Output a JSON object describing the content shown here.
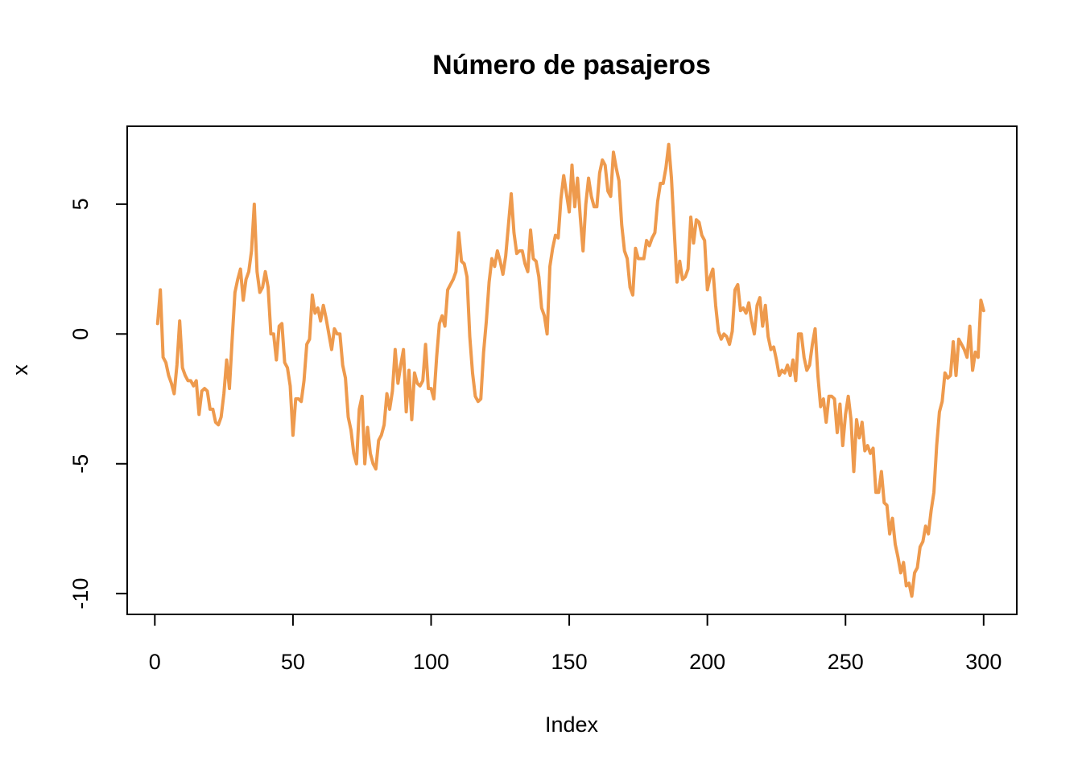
{
  "chart_data": {
    "type": "line",
    "title": "Número de pasajeros",
    "xlabel": "Index",
    "ylabel": "x",
    "xlim": [
      -10,
      312
    ],
    "ylim": [
      -10.8,
      8.0
    ],
    "x_ticks": [
      0,
      50,
      100,
      150,
      200,
      250,
      300
    ],
    "y_ticks": [
      -10,
      -5,
      0,
      5
    ],
    "grid": false,
    "legend": "none",
    "color": "#EE9A4D",
    "series": [
      {
        "x_start": 1,
        "x_step": 1,
        "values": [
          0.4,
          1.7,
          -0.9,
          -1.1,
          -1.6,
          -1.9,
          -2.3,
          -1.2,
          0.5,
          -1.3,
          -1.6,
          -1.8,
          -1.8,
          -2.0,
          -1.8,
          -3.1,
          -2.2,
          -2.1,
          -2.2,
          -2.9,
          -2.9,
          -3.4,
          -3.5,
          -3.2,
          -2.3,
          -1.0,
          -2.1,
          -0.2,
          1.6,
          2.1,
          2.5,
          1.3,
          2.1,
          2.4,
          3.2,
          5.0,
          2.4,
          1.6,
          1.8,
          2.4,
          1.8,
          0.0,
          0.0,
          -1.0,
          0.3,
          0.4,
          -1.1,
          -1.3,
          -2.0,
          -3.9,
          -2.5,
          -2.5,
          -2.6,
          -1.8,
          -0.4,
          -0.2,
          1.5,
          0.8,
          1.0,
          0.5,
          1.1,
          0.6,
          0.0,
          -0.6,
          0.2,
          0.0,
          0.0,
          -1.2,
          -1.7,
          -3.2,
          -3.7,
          -4.6,
          -5.0,
          -2.9,
          -2.4,
          -5.0,
          -3.6,
          -4.6,
          -5.0,
          -5.2,
          -4.1,
          -3.9,
          -3.5,
          -2.3,
          -2.9,
          -2.2,
          -0.6,
          -1.9,
          -1.2,
          -0.6,
          -3.0,
          -1.4,
          -3.3,
          -1.5,
          -1.9,
          -2.0,
          -1.8,
          -0.4,
          -2.1,
          -2.1,
          -2.5,
          -0.9,
          0.4,
          0.7,
          0.3,
          1.7,
          1.9,
          2.1,
          2.4,
          3.9,
          2.8,
          2.7,
          2.2,
          -0.1,
          -1.5,
          -2.4,
          -2.6,
          -2.5,
          -0.7,
          0.5,
          2.0,
          2.9,
          2.6,
          3.2,
          2.8,
          2.3,
          3.0,
          4.2,
          5.4,
          3.9,
          3.1,
          3.2,
          3.2,
          2.7,
          2.4,
          4.0,
          2.9,
          2.8,
          2.2,
          1.0,
          0.7,
          0.0,
          2.6,
          3.3,
          3.8,
          3.7,
          5.2,
          6.1,
          5.4,
          4.7,
          6.5,
          4.9,
          6.0,
          4.5,
          3.2,
          5.0,
          6.0,
          5.3,
          4.9,
          4.9,
          6.2,
          6.7,
          6.5,
          5.5,
          5.3,
          7.0,
          6.4,
          5.9,
          4.2,
          3.2,
          2.9,
          1.8,
          1.5,
          3.3,
          2.9,
          2.9,
          2.9,
          3.6,
          3.4,
          3.7,
          3.9,
          5.1,
          5.8,
          5.8,
          6.4,
          7.3,
          6.0,
          4.0,
          2.0,
          2.8,
          2.1,
          2.2,
          2.5,
          4.5,
          3.5,
          4.4,
          4.3,
          3.8,
          3.6,
          1.7,
          2.2,
          2.5,
          1.1,
          0.1,
          -0.2,
          0.0,
          -0.1,
          -0.4,
          0.1,
          1.7,
          1.9,
          0.9,
          1.0,
          0.8,
          1.2,
          0.5,
          0.0,
          1.1,
          1.4,
          0.3,
          1.1,
          -0.1,
          -0.6,
          -0.5,
          -1.0,
          -1.6,
          -1.4,
          -1.5,
          -1.2,
          -1.6,
          -1.0,
          -1.8,
          0.0,
          0.0,
          -0.9,
          -1.4,
          -1.2,
          -0.4,
          0.2,
          -1.6,
          -2.8,
          -2.5,
          -3.4,
          -2.4,
          -2.4,
          -2.5,
          -3.8,
          -2.7,
          -4.3,
          -3.1,
          -2.4,
          -3.3,
          -5.3,
          -3.3,
          -4.0,
          -3.4,
          -4.5,
          -4.3,
          -4.6,
          -4.4,
          -6.1,
          -6.1,
          -5.3,
          -6.5,
          -6.6,
          -7.7,
          -7.1,
          -8.1,
          -8.6,
          -9.2,
          -8.8,
          -9.7,
          -9.6,
          -10.1,
          -9.2,
          -9.0,
          -8.2,
          -8.0,
          -7.4,
          -7.7,
          -6.8,
          -6.1,
          -4.3,
          -3.0,
          -2.6,
          -1.5,
          -1.7,
          -1.6,
          -0.3,
          -1.6,
          -0.2,
          -0.4,
          -0.6,
          -0.9,
          0.3,
          -1.4,
          -0.7,
          -0.9,
          1.3,
          0.9
        ]
      }
    ]
  }
}
